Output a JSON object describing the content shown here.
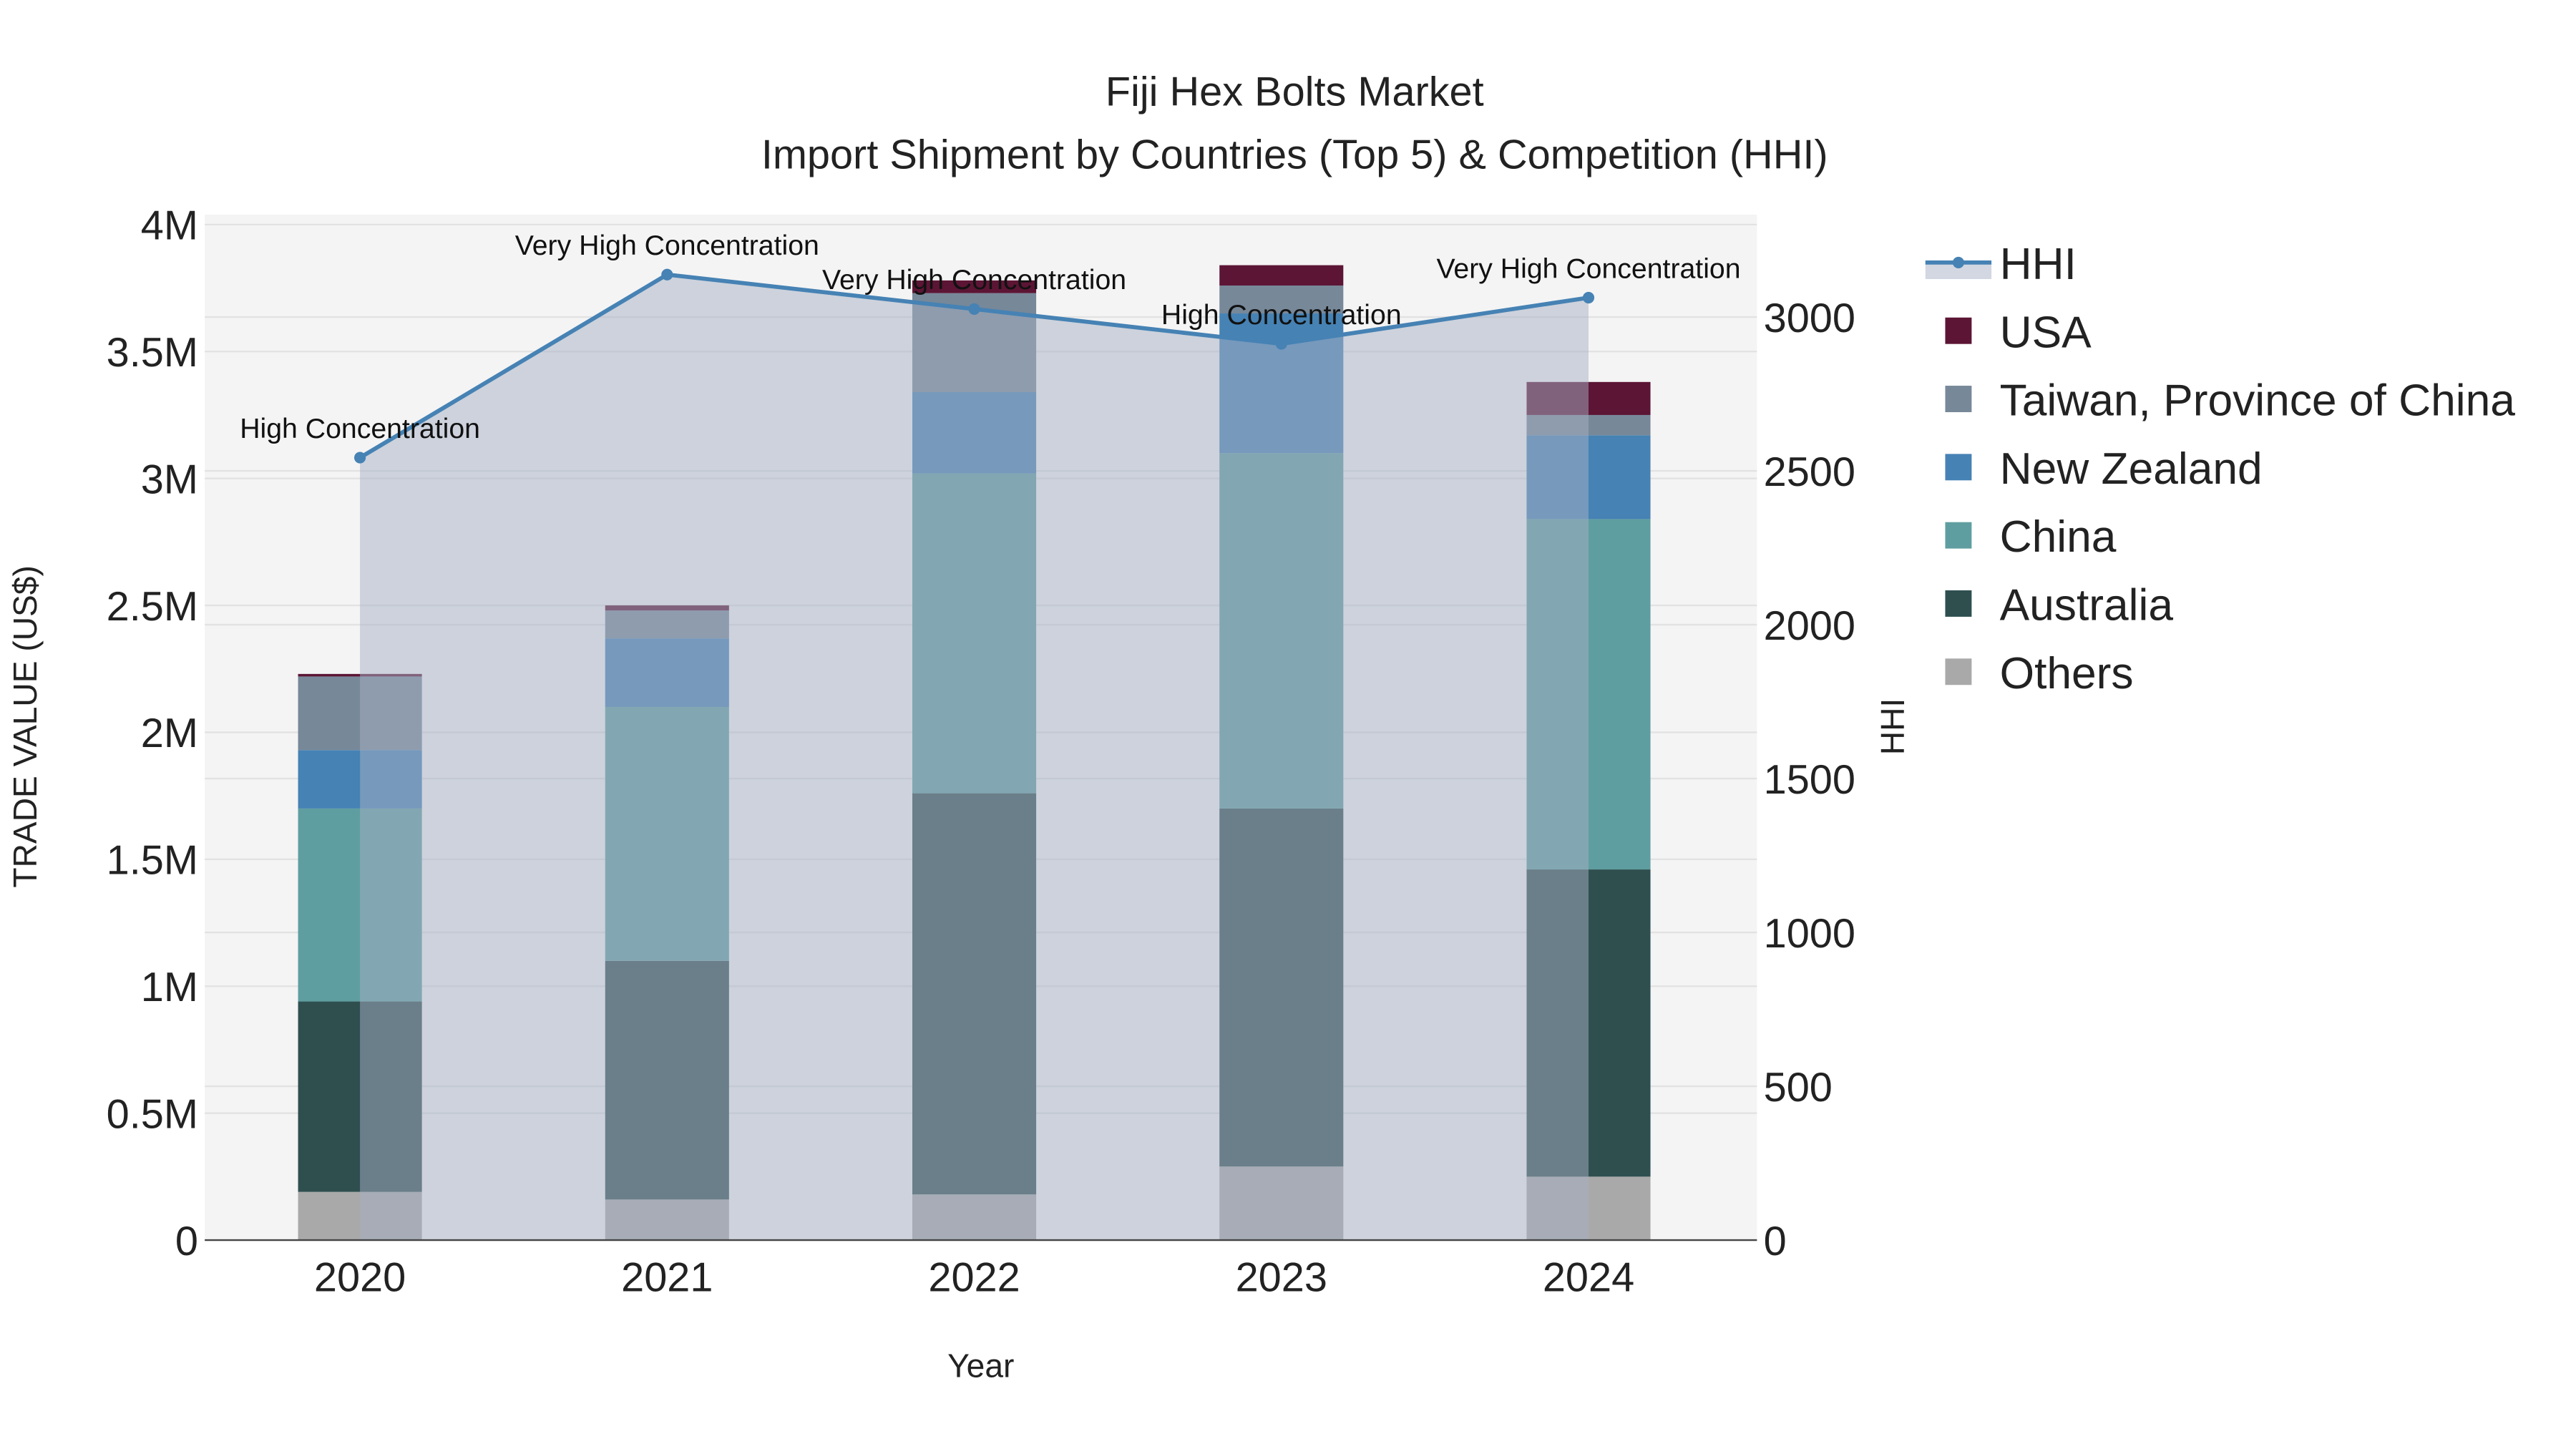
{
  "chart_data": {
    "type": "bar",
    "title": "Fiji Hex Bolts Market",
    "subtitle": "Import Shipment by Countries (Top 5) & Competition (HHI)",
    "xlabel": "Year",
    "ylabel": "TRADE VALUE (US$)",
    "y2label": "HHI",
    "categories": [
      "2020",
      "2021",
      "2022",
      "2023",
      "2024"
    ],
    "ylim": [
      0,
      4000000
    ],
    "y2lim": [
      0,
      3333
    ],
    "yticks": [
      {
        "v": 0,
        "t": "0"
      },
      {
        "v": 500000,
        "t": "0.5M"
      },
      {
        "v": 1000000,
        "t": "1M"
      },
      {
        "v": 1500000,
        "t": "1.5M"
      },
      {
        "v": 2000000,
        "t": "2M"
      },
      {
        "v": 2500000,
        "t": "2.5M"
      },
      {
        "v": 3000000,
        "t": "3M"
      },
      {
        "v": 3500000,
        "t": "3.5M"
      },
      {
        "v": 4000000,
        "t": "4M"
      }
    ],
    "y2ticks": [
      {
        "v": 0,
        "t": "0"
      },
      {
        "v": 500,
        "t": "500"
      },
      {
        "v": 1000,
        "t": "1000"
      },
      {
        "v": 1500,
        "t": "1500"
      },
      {
        "v": 2000,
        "t": "2000"
      },
      {
        "v": 2500,
        "t": "2500"
      },
      {
        "v": 3000,
        "t": "3000"
      }
    ],
    "grid": true,
    "legend_position": "right",
    "series": [
      {
        "name": "Others",
        "color": "#a9a9a9",
        "values": [
          190000,
          160000,
          180000,
          290000,
          250000
        ]
      },
      {
        "name": "Australia",
        "color": "#2f4f4f",
        "values": [
          750000,
          940000,
          1580000,
          1410000,
          1210000
        ]
      },
      {
        "name": "China",
        "color": "#5f9ea0",
        "values": [
          760000,
          1000000,
          1260000,
          1400000,
          1380000
        ]
      },
      {
        "name": "New Zealand",
        "color": "#4682b4",
        "values": [
          230000,
          270000,
          320000,
          550000,
          330000
        ]
      },
      {
        "name": "Taiwan, Province of China",
        "color": "#778899",
        "values": [
          290000,
          110000,
          390000,
          110000,
          80000
        ]
      },
      {
        "name": "USA",
        "color": "#5c1535",
        "values": [
          10000,
          20000,
          50000,
          80000,
          130000
        ]
      }
    ],
    "hhi": {
      "name": "HHI",
      "color": "#4682b4",
      "values": [
        2543,
        3138,
        3026,
        2913,
        3063
      ],
      "labels": [
        "High Concentration",
        "Very High Concentration",
        "Very High Concentration",
        "High Concentration",
        "Very High Concentration"
      ]
    },
    "legend_order": [
      "HHI",
      "USA",
      "Taiwan, Province of China",
      "New Zealand",
      "China",
      "Australia",
      "Others"
    ]
  }
}
